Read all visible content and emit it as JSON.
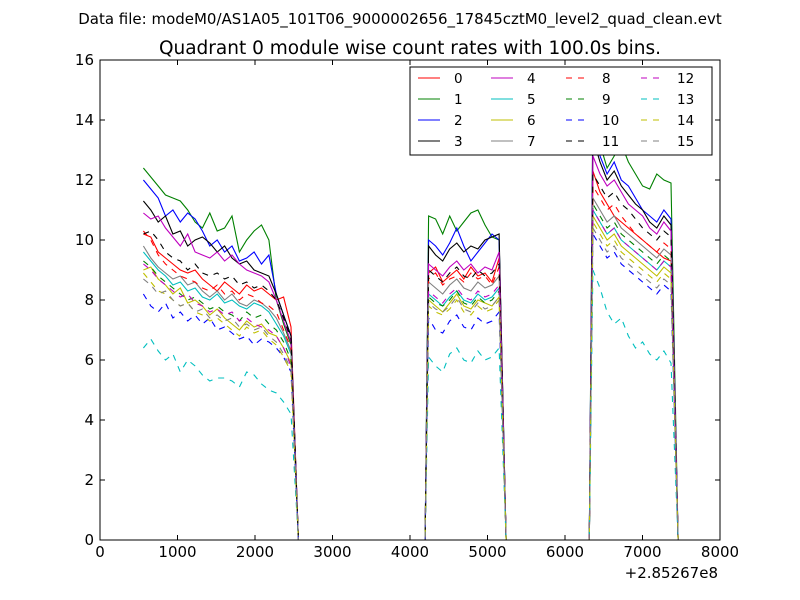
{
  "suptitle": "Data file: modeM0/AS1A05_101T06_9000002656_17845cztM0_level2_quad_clean.evt",
  "chart_data": {
    "type": "line",
    "title": "Quadrant 0 module wise count rates with 100.0s bins.",
    "xlabel": "",
    "ylabel": "",
    "x_offset_label": "+2.85267e8",
    "xlim": [
      0,
      8000
    ],
    "ylim": [
      0,
      16
    ],
    "xticks": [
      0,
      1000,
      2000,
      3000,
      4000,
      5000,
      6000,
      7000,
      8000
    ],
    "yticks": [
      0,
      2,
      4,
      6,
      8,
      10,
      12,
      14,
      16
    ],
    "grid": false,
    "legend_position": "top-right",
    "legend_columns": 4,
    "segments": [
      {
        "name": "A",
        "x_start": 560,
        "x_stop": 2560
      },
      {
        "name": "B",
        "x_start": 4240,
        "x_stop": 5240
      },
      {
        "name": "C",
        "x_start": 6360,
        "x_stop": 7460
      }
    ],
    "series": [
      {
        "name": "0",
        "color": "#ff0000",
        "dash": "solid",
        "A": [
          10.2,
          10.1,
          9.6,
          9.4,
          9.2,
          9.0,
          8.9,
          9.0,
          8.7,
          8.5,
          8.3,
          8.6,
          8.4,
          8.2,
          8.5,
          8.3,
          8.4,
          8.2,
          8.0,
          8.1,
          7.1
        ],
        "B": [
          8.9,
          9.1,
          8.6,
          8.8,
          9.0,
          8.7,
          9.1,
          8.8,
          8.9,
          8.6,
          9.4
        ],
        "C": [
          12.3,
          11.6,
          11.2,
          10.8,
          10.6,
          10.4,
          10.2,
          10.0,
          9.8,
          9.6,
          9.4,
          9.3
        ]
      },
      {
        "name": "1",
        "color": "#008000",
        "dash": "solid",
        "A": [
          12.4,
          12.1,
          11.8,
          11.5,
          11.4,
          11.3,
          11.0,
          10.6,
          10.4,
          10.9,
          10.3,
          10.4,
          10.8,
          9.6,
          10.0,
          10.3,
          10.5,
          10.0,
          8.0,
          7.2,
          6.5
        ],
        "B": [
          10.8,
          10.7,
          10.2,
          10.8,
          10.3,
          10.6,
          10.9,
          11.0,
          10.5,
          10.1,
          10.0
        ],
        "C": [
          14.6,
          13.2,
          12.4,
          12.8,
          13.2,
          12.6,
          12.2,
          11.8,
          11.7,
          12.2,
          12.0,
          11.9
        ]
      },
      {
        "name": "2",
        "color": "#0000ff",
        "dash": "solid",
        "A": [
          12.0,
          11.7,
          11.4,
          10.8,
          11.0,
          10.6,
          10.9,
          10.7,
          10.3,
          9.8,
          10.0,
          9.6,
          9.8,
          9.3,
          9.4,
          9.6,
          9.2,
          9.5,
          8.2,
          7.5,
          6.8
        ],
        "B": [
          10.0,
          9.8,
          9.5,
          9.9,
          10.4,
          9.8,
          9.3,
          9.6,
          9.9,
          10.2,
          10.0
        ],
        "C": [
          14.0,
          12.8,
          12.2,
          12.6,
          12.0,
          11.8,
          11.4,
          11.0,
          10.8,
          10.6,
          11.0,
          10.7
        ]
      },
      {
        "name": "3",
        "color": "#000000",
        "dash": "solid",
        "A": [
          11.3,
          11.0,
          10.6,
          10.8,
          10.2,
          10.3,
          9.8,
          10.0,
          10.1,
          9.9,
          9.6,
          9.8,
          9.4,
          9.2,
          9.3,
          9.0,
          8.9,
          8.8,
          8.2,
          7.5,
          6.8
        ],
        "B": [
          9.8,
          9.5,
          9.3,
          9.7,
          9.9,
          9.6,
          9.8,
          9.7,
          10.0,
          10.1,
          10.2
        ],
        "C": [
          13.4,
          12.6,
          12.0,
          12.3,
          11.8,
          11.5,
          11.2,
          11.0,
          10.6,
          10.4,
          10.8,
          10.5
        ]
      },
      {
        "name": "4",
        "color": "#bf00bf",
        "dash": "solid",
        "A": [
          10.9,
          10.7,
          10.8,
          10.4,
          10.1,
          9.8,
          10.2,
          9.6,
          9.5,
          9.4,
          9.6,
          9.3,
          9.5,
          9.2,
          9.0,
          8.9,
          8.8,
          8.6,
          8.0,
          7.3,
          6.6
        ],
        "B": [
          9.2,
          9.0,
          8.8,
          9.1,
          9.3,
          9.0,
          9.2,
          8.9,
          9.1,
          9.0,
          9.6
        ],
        "C": [
          12.8,
          12.2,
          11.8,
          12.0,
          11.6,
          11.2,
          11.0,
          10.8,
          10.4,
          10.2,
          10.6,
          10.3
        ]
      },
      {
        "name": "5",
        "color": "#00bfbf",
        "dash": "solid",
        "A": [
          9.6,
          9.3,
          9.0,
          8.8,
          8.5,
          8.6,
          8.3,
          8.4,
          8.1,
          8.0,
          8.2,
          7.9,
          8.0,
          7.8,
          7.7,
          7.9,
          7.8,
          7.6,
          7.2,
          6.8,
          6.2
        ],
        "B": [
          8.2,
          8.0,
          7.8,
          8.1,
          8.3,
          8.0,
          7.9,
          8.2,
          8.0,
          8.1,
          8.4
        ],
        "C": [
          11.0,
          10.6,
          10.2,
          10.4,
          10.0,
          9.8,
          9.6,
          9.4,
          9.2,
          9.0,
          9.3,
          9.1
        ]
      },
      {
        "name": "6",
        "color": "#bfbf00",
        "dash": "solid",
        "A": [
          9.0,
          9.1,
          8.7,
          8.5,
          8.2,
          8.4,
          7.9,
          8.0,
          7.8,
          7.5,
          7.7,
          7.4,
          7.2,
          7.0,
          7.3,
          7.1,
          7.2,
          6.9,
          6.8,
          6.4,
          5.9
        ],
        "B": [
          8.0,
          7.8,
          7.6,
          7.9,
          8.2,
          7.8,
          7.7,
          8.0,
          7.9,
          7.8,
          8.1
        ],
        "C": [
          10.8,
          10.4,
          10.0,
          10.2,
          9.8,
          9.6,
          9.4,
          9.2,
          9.0,
          8.8,
          9.1,
          8.9
        ]
      },
      {
        "name": "7",
        "color": "#808080",
        "dash": "solid",
        "A": [
          9.8,
          9.4,
          9.1,
          8.9,
          8.7,
          8.8,
          8.5,
          8.6,
          8.3,
          8.1,
          8.3,
          8.0,
          8.2,
          7.9,
          7.8,
          8.0,
          7.9,
          7.7,
          7.4,
          6.9,
          6.3
        ],
        "B": [
          8.6,
          8.4,
          8.2,
          8.5,
          8.7,
          8.4,
          8.3,
          8.6,
          8.4,
          8.5,
          8.8
        ],
        "C": [
          11.4,
          11.0,
          10.6,
          10.8,
          10.4,
          10.2,
          10.0,
          9.8,
          9.6,
          9.4,
          9.7,
          9.5
        ]
      },
      {
        "name": "8",
        "color": "#ff0000",
        "dash": "dashed",
        "A": [
          10.3,
          10.0,
          9.5,
          9.2,
          9.0,
          8.8,
          8.7,
          8.6,
          8.4,
          8.3,
          8.5,
          8.2,
          8.3,
          8.0,
          8.2,
          8.1,
          7.9,
          7.8,
          7.6,
          7.0,
          6.4
        ],
        "B": [
          8.7,
          8.9,
          8.5,
          8.7,
          8.8,
          8.6,
          8.9,
          8.7,
          8.8,
          8.5,
          9.1
        ],
        "C": [
          11.8,
          11.4,
          11.0,
          11.2,
          10.8,
          10.5,
          10.2,
          10.0,
          9.8,
          9.6,
          9.9,
          9.7
        ]
      },
      {
        "name": "9",
        "color": "#008000",
        "dash": "dashed",
        "A": [
          9.3,
          9.1,
          8.8,
          8.6,
          8.4,
          8.2,
          8.0,
          8.1,
          7.9,
          7.7,
          7.8,
          7.6,
          7.5,
          7.3,
          7.6,
          7.4,
          7.5,
          7.2,
          7.0,
          6.6,
          6.0
        ],
        "B": [
          8.1,
          7.9,
          7.8,
          8.0,
          8.3,
          7.9,
          7.8,
          8.1,
          7.9,
          8.0,
          8.3
        ],
        "C": [
          11.2,
          10.8,
          10.4,
          10.6,
          10.2,
          10.0,
          9.8,
          9.6,
          9.4,
          9.2,
          9.5,
          9.3
        ]
      },
      {
        "name": "10",
        "color": "#0000ff",
        "dash": "dashed",
        "A": [
          8.2,
          7.8,
          7.6,
          7.9,
          7.4,
          7.6,
          7.3,
          7.5,
          7.2,
          7.4,
          7.0,
          7.1,
          6.9,
          6.7,
          6.8,
          6.5,
          6.7,
          6.6,
          6.4,
          6.1,
          5.6
        ],
        "B": [
          7.4,
          7.0,
          6.9,
          7.3,
          7.5,
          7.1,
          7.0,
          7.4,
          7.2,
          7.3,
          7.6
        ],
        "C": [
          10.2,
          9.8,
          9.4,
          9.6,
          9.2,
          9.0,
          8.8,
          8.6,
          8.4,
          8.2,
          8.5,
          8.3
        ]
      },
      {
        "name": "11",
        "color": "#000000",
        "dash": "dashed",
        "A": [
          10.2,
          10.3,
          10.0,
          9.6,
          9.4,
          9.3,
          9.0,
          9.2,
          8.9,
          8.8,
          8.9,
          8.7,
          8.8,
          8.5,
          8.6,
          8.4,
          8.5,
          8.3,
          8.0,
          7.4,
          6.7
        ],
        "B": [
          9.0,
          8.8,
          8.6,
          8.9,
          9.1,
          8.8,
          8.7,
          9.0,
          8.8,
          8.9,
          9.2
        ],
        "C": [
          12.2,
          11.8,
          11.4,
          11.6,
          11.2,
          11.0,
          10.7,
          10.4,
          10.2,
          10.0,
          10.3,
          10.1
        ]
      },
      {
        "name": "12",
        "color": "#bf00bf",
        "dash": "dashed",
        "A": [
          9.2,
          9.0,
          8.7,
          8.5,
          8.3,
          8.1,
          8.2,
          7.9,
          7.8,
          7.6,
          7.7,
          7.5,
          7.6,
          7.3,
          7.4,
          7.2,
          7.1,
          7.0,
          6.8,
          6.4,
          5.8
        ],
        "B": [
          8.3,
          8.1,
          7.9,
          8.2,
          8.4,
          8.1,
          8.0,
          8.3,
          8.1,
          8.2,
          8.5
        ],
        "C": [
          11.0,
          10.6,
          10.2,
          10.4,
          10.0,
          9.8,
          9.6,
          9.4,
          9.2,
          9.0,
          9.3,
          9.1
        ]
      },
      {
        "name": "13",
        "color": "#00bfbf",
        "dash": "dashed",
        "A": [
          6.4,
          6.7,
          6.3,
          6.0,
          6.2,
          5.6,
          6.0,
          5.8,
          5.5,
          5.3,
          5.4,
          5.4,
          5.3,
          5.1,
          5.6,
          5.5,
          5.2,
          5.0,
          4.9,
          4.6,
          4.2
        ],
        "B": [
          6.1,
          5.8,
          5.6,
          6.2,
          6.4,
          6.0,
          5.9,
          6.3,
          6.0,
          6.1,
          6.4
        ],
        "C": [
          9.0,
          8.4,
          7.6,
          7.2,
          7.4,
          6.8,
          6.4,
          6.6,
          6.2,
          6.0,
          6.3,
          5.9
        ]
      },
      {
        "name": "14",
        "color": "#bfbf00",
        "dash": "dashed",
        "A": [
          8.9,
          8.6,
          8.3,
          8.2,
          8.0,
          7.8,
          7.9,
          7.6,
          7.5,
          7.3,
          7.4,
          7.2,
          7.0,
          6.8,
          7.1,
          6.9,
          7.0,
          6.7,
          6.5,
          6.1,
          5.6
        ],
        "B": [
          7.8,
          7.6,
          7.5,
          7.7,
          8.0,
          7.6,
          7.5,
          7.8,
          7.6,
          7.7,
          8.0
        ],
        "C": [
          10.6,
          10.2,
          9.8,
          10.0,
          9.6,
          9.4,
          9.2,
          9.0,
          8.8,
          8.6,
          8.9,
          8.7
        ]
      },
      {
        "name": "15",
        "color": "#808080",
        "dash": "dashed",
        "A": [
          8.7,
          8.5,
          8.2,
          8.3,
          8.0,
          7.8,
          7.9,
          7.6,
          7.7,
          7.4,
          7.5,
          7.3,
          7.4,
          7.1,
          7.2,
          7.0,
          7.1,
          6.8,
          6.6,
          6.2,
          5.7
        ],
        "B": [
          7.9,
          7.7,
          7.6,
          7.8,
          8.1,
          7.7,
          7.6,
          7.9,
          7.7,
          7.8,
          8.1
        ],
        "C": [
          10.4,
          10.0,
          9.6,
          9.8,
          9.4,
          9.2,
          9.0,
          8.8,
          8.6,
          8.4,
          8.7,
          8.5
        ]
      }
    ]
  }
}
